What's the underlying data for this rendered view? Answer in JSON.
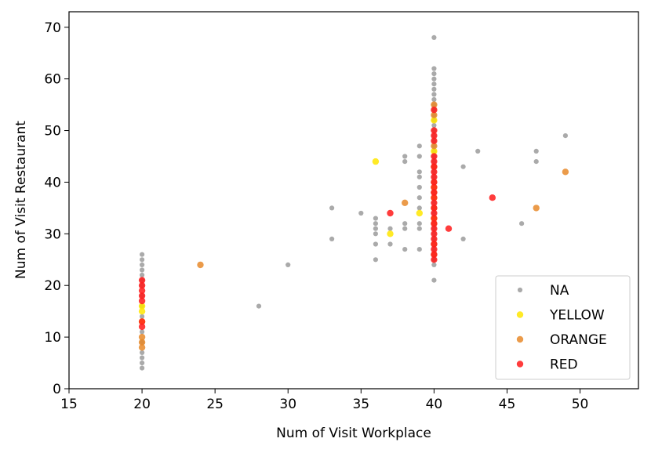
{
  "chart_data": {
    "type": "scatter",
    "xlabel": "Num of Visit Workplace",
    "ylabel": "Num of Visit Restaurant",
    "xlim": [
      15,
      54
    ],
    "ylim": [
      0,
      73
    ],
    "xticks": [
      15,
      20,
      25,
      30,
      35,
      40,
      45,
      50
    ],
    "yticks": [
      0,
      10,
      20,
      30,
      40,
      50,
      60,
      70
    ],
    "grid": false,
    "legend_position": "lower-right",
    "series": [
      {
        "name": "NA",
        "color": "#555555",
        "points": [
          [
            20,
            4
          ],
          [
            20,
            5
          ],
          [
            20,
            6
          ],
          [
            20,
            7
          ],
          [
            20,
            9
          ],
          [
            20,
            11
          ],
          [
            20,
            14
          ],
          [
            20,
            16
          ],
          [
            20,
            18
          ],
          [
            20,
            20
          ],
          [
            20,
            21
          ],
          [
            20,
            22
          ],
          [
            20,
            23
          ],
          [
            20,
            24
          ],
          [
            20,
            25
          ],
          [
            20,
            26
          ],
          [
            28,
            16
          ],
          [
            30,
            24
          ],
          [
            33,
            29
          ],
          [
            33,
            35
          ],
          [
            35,
            34
          ],
          [
            36,
            25
          ],
          [
            36,
            28
          ],
          [
            36,
            30
          ],
          [
            36,
            31
          ],
          [
            36,
            32
          ],
          [
            36,
            33
          ],
          [
            37,
            28
          ],
          [
            37,
            31
          ],
          [
            38,
            27
          ],
          [
            38,
            31
          ],
          [
            38,
            32
          ],
          [
            38,
            44
          ],
          [
            38,
            45
          ],
          [
            39,
            27
          ],
          [
            39,
            31
          ],
          [
            39,
            32
          ],
          [
            39,
            35
          ],
          [
            39,
            37
          ],
          [
            39,
            39
          ],
          [
            39,
            41
          ],
          [
            39,
            42
          ],
          [
            39,
            45
          ],
          [
            39,
            47
          ],
          [
            40,
            21
          ],
          [
            40,
            24
          ],
          [
            40,
            25
          ],
          [
            40,
            26
          ],
          [
            40,
            27
          ],
          [
            40,
            28
          ],
          [
            40,
            29
          ],
          [
            40,
            30
          ],
          [
            40,
            31
          ],
          [
            40,
            32
          ],
          [
            40,
            33
          ],
          [
            40,
            34
          ],
          [
            40,
            35
          ],
          [
            40,
            36
          ],
          [
            40,
            37
          ],
          [
            40,
            38
          ],
          [
            40,
            39
          ],
          [
            40,
            40
          ],
          [
            40,
            41
          ],
          [
            40,
            42
          ],
          [
            40,
            43
          ],
          [
            40,
            44
          ],
          [
            40,
            45
          ],
          [
            40,
            46
          ],
          [
            40,
            47
          ],
          [
            40,
            48
          ],
          [
            40,
            49
          ],
          [
            40,
            50
          ],
          [
            40,
            51
          ],
          [
            40,
            52
          ],
          [
            40,
            53
          ],
          [
            40,
            54
          ],
          [
            40,
            55
          ],
          [
            40,
            56
          ],
          [
            40,
            57
          ],
          [
            40,
            58
          ],
          [
            40,
            59
          ],
          [
            40,
            60
          ],
          [
            40,
            61
          ],
          [
            40,
            62
          ],
          [
            40,
            68
          ],
          [
            42,
            29
          ],
          [
            42,
            43
          ],
          [
            43,
            46
          ],
          [
            46,
            32
          ],
          [
            47,
            44
          ],
          [
            47,
            46
          ],
          [
            49,
            49
          ]
        ]
      },
      {
        "name": "YELLOW",
        "color": "#ffe600",
        "points": [
          [
            20,
            13
          ],
          [
            20,
            15
          ],
          [
            20,
            16
          ],
          [
            36,
            44
          ],
          [
            37,
            30
          ],
          [
            39,
            34
          ],
          [
            40,
            33
          ],
          [
            40,
            37
          ],
          [
            40,
            39
          ],
          [
            40,
            46
          ],
          [
            40,
            52
          ]
        ]
      },
      {
        "name": "ORANGE",
        "color": "#e8892a",
        "points": [
          [
            20,
            8
          ],
          [
            20,
            9
          ],
          [
            20,
            10
          ],
          [
            24,
            24
          ],
          [
            38,
            36
          ],
          [
            40,
            26
          ],
          [
            40,
            28
          ],
          [
            40,
            32
          ],
          [
            40,
            35
          ],
          [
            40,
            38
          ],
          [
            40,
            40
          ],
          [
            40,
            43
          ],
          [
            40,
            47
          ],
          [
            40,
            53
          ],
          [
            40,
            55
          ],
          [
            47,
            35
          ],
          [
            49,
            42
          ]
        ]
      },
      {
        "name": "RED",
        "color": "#ff1a1a",
        "points": [
          [
            20,
            12
          ],
          [
            20,
            13
          ],
          [
            20,
            17
          ],
          [
            20,
            18
          ],
          [
            20,
            19
          ],
          [
            20,
            20
          ],
          [
            20,
            21
          ],
          [
            37,
            34
          ],
          [
            40,
            25
          ],
          [
            40,
            26
          ],
          [
            40,
            27
          ],
          [
            40,
            28
          ],
          [
            40,
            29
          ],
          [
            40,
            30
          ],
          [
            40,
            31
          ],
          [
            40,
            32
          ],
          [
            40,
            33
          ],
          [
            40,
            34
          ],
          [
            40,
            35
          ],
          [
            40,
            36
          ],
          [
            40,
            37
          ],
          [
            40,
            38
          ],
          [
            40,
            39
          ],
          [
            40,
            40
          ],
          [
            40,
            41
          ],
          [
            40,
            42
          ],
          [
            40,
            43
          ],
          [
            40,
            44
          ],
          [
            40,
            45
          ],
          [
            40,
            48
          ],
          [
            40,
            49
          ],
          [
            40,
            50
          ],
          [
            40,
            54
          ],
          [
            41,
            31
          ],
          [
            44,
            37
          ]
        ]
      }
    ]
  }
}
